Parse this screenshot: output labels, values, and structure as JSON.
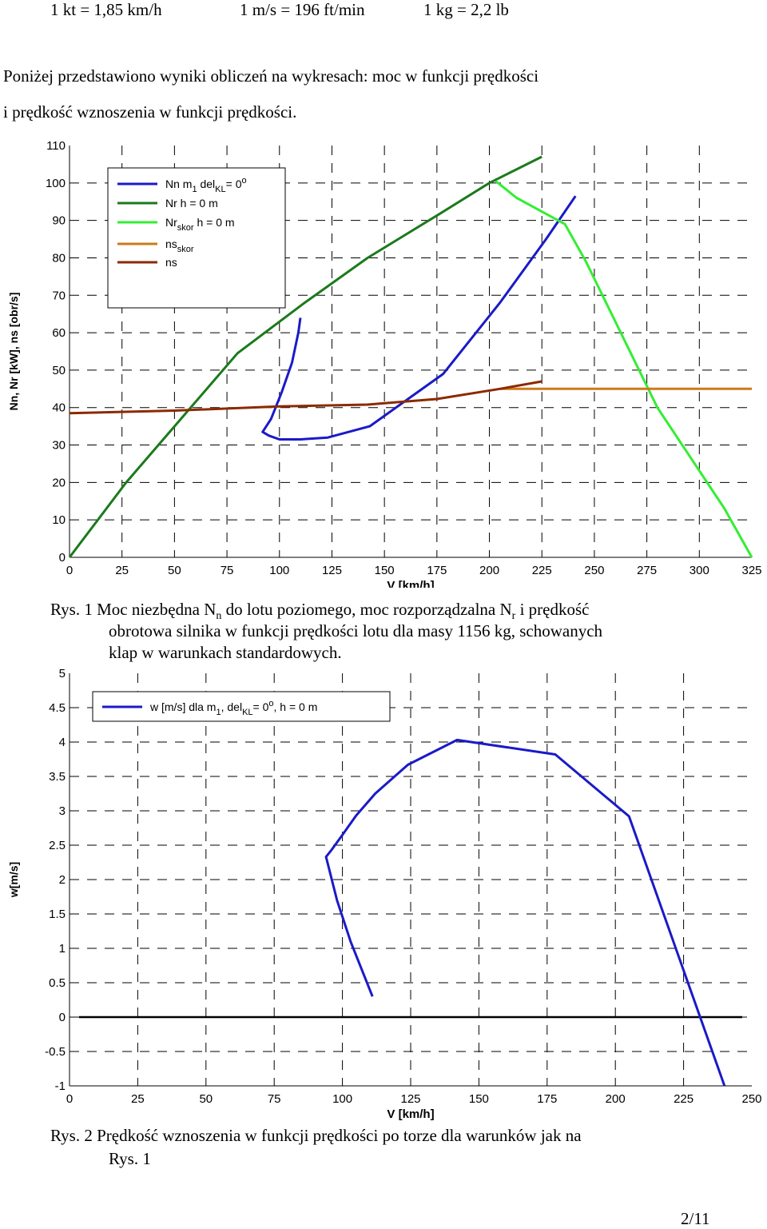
{
  "conversions": [
    "1 kt = 1,85 km/h",
    "1 m/s = 196 ft/min",
    "1 kg = 2,2 lb"
  ],
  "intro": {
    "line1": "Poniżej przedstawiono wyniki obliczeń na wykresach: moc w funkcji prędkości",
    "line2": "i prędkość wznoszenia w funkcji prędkości."
  },
  "caption1": {
    "line1_pre": "Rys. 1 Moc niezbędna N",
    "line1_sub1": "n",
    "line1_mid": " do lotu poziomego, moc rozporządzalna N",
    "line1_sub2": "r",
    "line1_post": " i prędkość",
    "line2": "obrotowa silnika w funkcji prędkości lotu dla masy 1156 kg, schowanych",
    "line3": "klap w warunkach standardowych."
  },
  "caption2": {
    "line1": "Rys. 2 Prędkość wznoszenia w funkcji prędkości po torze dla warunków jak na",
    "line2": "Rys. 1"
  },
  "page_number": "2/11",
  "chart_data": [
    {
      "type": "line",
      "title": "",
      "xlabel": "V [km/h]",
      "ylabel": "Nn, Nr [kW], ns [obr/s]",
      "xlim": [
        0,
        325
      ],
      "ylim": [
        0,
        110
      ],
      "xticks": [
        "0",
        "25",
        "50",
        "75",
        "100",
        "125",
        "150",
        "175",
        "200",
        "225",
        "250",
        "275",
        "300",
        "325"
      ],
      "yticks": [
        "0",
        "10",
        "20",
        "30",
        "40",
        "50",
        "60",
        "70",
        "80",
        "90",
        "100",
        "110"
      ],
      "grid": true,
      "legend_position": "top-left",
      "series": [
        {
          "name": "Nn",
          "legend_parts": [
            "Nn m",
            "1",
            " del",
            "KL",
            "= 0",
            "o"
          ],
          "color": "#1a1ac8",
          "x": [
            110,
            109,
            106,
            101,
            96,
            92,
            95,
            100,
            110,
            123,
            143,
            178,
            205,
            227,
            241
          ],
          "y": [
            64,
            60,
            52,
            44,
            37,
            33.5,
            32.5,
            31.5,
            31.5,
            32,
            35,
            49,
            68,
            85,
            96.5
          ]
        },
        {
          "name": "Nr",
          "legend_parts": [
            "Nr       h = 0 m"
          ],
          "color": "#1b7a1b",
          "x": [
            0,
            27,
            80,
            112,
            142,
            177,
            200,
            225
          ],
          "y": [
            0,
            20,
            54.5,
            68,
            80,
            92,
            100,
            107
          ]
        },
        {
          "name": "Nr_skor",
          "legend_parts": [
            "Nr",
            "skor",
            "  h = 0 m"
          ],
          "color": "#33ee33",
          "x": [
            203,
            213,
            236,
            246,
            280,
            312,
            325
          ],
          "y": [
            100.5,
            96,
            89,
            79,
            40,
            13,
            0
          ]
        },
        {
          "name": "ns_skor",
          "legend_parts": [
            "ns",
            "skor"
          ],
          "color": "#cc7a1a",
          "x": [
            205,
            215,
            325
          ],
          "y": [
            45,
            45,
            45
          ]
        },
        {
          "name": "ns",
          "legend_parts": [
            "ns"
          ],
          "color": "#8b2a00",
          "x": [
            0,
            50,
            100,
            142,
            175,
            205,
            225
          ],
          "y": [
            38.5,
            39.2,
            40.3,
            40.8,
            42.3,
            45,
            47
          ]
        }
      ]
    },
    {
      "type": "line",
      "title": "",
      "xlabel": "V [km/h]",
      "ylabel": "w[m/s]",
      "xlim": [
        0,
        250
      ],
      "ylim": [
        -1,
        5
      ],
      "xticks": [
        "0",
        "25",
        "50",
        "75",
        "100",
        "125",
        "150",
        "175",
        "200",
        "225",
        "250"
      ],
      "yticks": [
        "-1",
        "-0.5",
        "0",
        "0.5",
        "1",
        "1.5",
        "2",
        "2.5",
        "3",
        "3.5",
        "4",
        "4.5",
        "5"
      ],
      "grid": true,
      "legend_position": "top-left",
      "series": [
        {
          "name": "w",
          "legend_parts": [
            "w [m/s] dla m",
            "1",
            ", del",
            "KL",
            "= 0",
            "o",
            ", h = 0 m"
          ],
          "color": "#1a1ac8",
          "x": [
            111,
            107,
            103,
            98,
            94,
            96,
            100,
            105,
            112,
            124,
            142,
            178,
            205,
            240
          ],
          "y": [
            0.3,
            0.7,
            1.1,
            1.7,
            2.33,
            2.43,
            2.65,
            2.93,
            3.25,
            3.67,
            4.03,
            3.82,
            2.92,
            -1
          ],
          "zero_line": true
        }
      ]
    }
  ]
}
